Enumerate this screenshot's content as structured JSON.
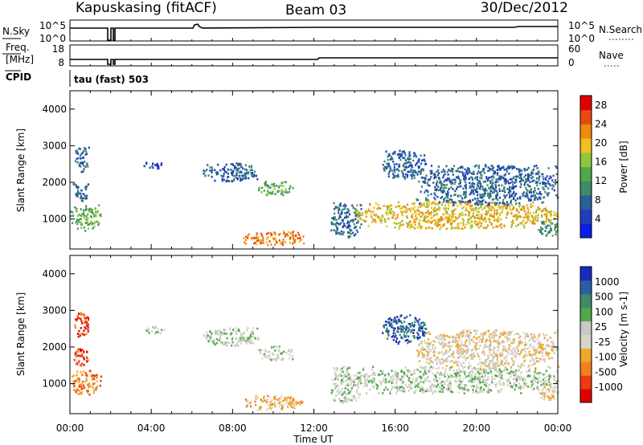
{
  "header": {
    "station": "Kapuskasing (fitACF)",
    "beam": "Beam 03",
    "date": "30/Dec/2012"
  },
  "top_panels": {
    "nsky_label": "N.Sky",
    "nsky_ticks": [
      "10^5",
      "10^0"
    ],
    "nsearch_label": "N.Search",
    "nsearch_ticks": [
      "10^5",
      "10^0"
    ],
    "freq_label_1": "Freq.",
    "freq_label_2": "[MHz]",
    "freq_ticks": [
      "18",
      "8"
    ],
    "nave_label": "Nave",
    "nave_ticks": [
      "60",
      "0"
    ],
    "cpid_label": "CPID",
    "cpid_value": "tau (fast) 503"
  },
  "colors": {
    "power": [
      "#0a1ee6",
      "#1f3fbf",
      "#2a5f9a",
      "#3f8a6a",
      "#4fa84a",
      "#8fc83a",
      "#f0c020",
      "#f08a10",
      "#e84a10",
      "#e00000"
    ],
    "velocity": [
      "#e00000",
      "#f03a10",
      "#f08020",
      "#f0a828",
      "#d8d4c8",
      "#c8c8c4",
      "#4fa84a",
      "#3f8a6a",
      "#2a5fa8",
      "#1a2ac0"
    ]
  },
  "chart_data": [
    {
      "type": "heatmap",
      "title": "Power",
      "ylabel": "Slant Range [km]",
      "xlabel": "Time UT",
      "x_ticks": [
        "00:00",
        "04:00",
        "08:00",
        "12:00",
        "16:00",
        "20:00",
        "00:00"
      ],
      "xlim_hours": [
        0,
        24
      ],
      "y_ticks": [
        "1000",
        "2000",
        "3000",
        "4000"
      ],
      "ylim": [
        180,
        4500
      ],
      "colorbar_label": "Power [dB]",
      "colorbar_ticks": [
        "4",
        "8",
        "12",
        "16",
        "20",
        "24",
        "28"
      ],
      "colorbar_range": [
        0,
        30
      ],
      "regions": [
        {
          "t0": 0.0,
          "t1": 1.5,
          "r0": 700,
          "r1": 1400,
          "level": 4
        },
        {
          "t0": 0.1,
          "t1": 0.9,
          "r0": 1500,
          "r1": 2000,
          "level": 2
        },
        {
          "t0": 0.2,
          "t1": 0.9,
          "r0": 2300,
          "r1": 3000,
          "level": 2
        },
        {
          "t0": 3.6,
          "t1": 4.6,
          "r0": 2380,
          "r1": 2580,
          "level": 1
        },
        {
          "t0": 6.5,
          "t1": 9.3,
          "r0": 2050,
          "r1": 2550,
          "level": 2
        },
        {
          "t0": 9.2,
          "t1": 11.0,
          "r0": 1650,
          "r1": 2050,
          "level": 4
        },
        {
          "t0": 8.5,
          "t1": 11.5,
          "r0": 300,
          "r1": 700,
          "level": 7
        },
        {
          "t0": 12.8,
          "t1": 14.3,
          "r0": 500,
          "r1": 1500,
          "level": 2
        },
        {
          "t0": 14.0,
          "t1": 24.0,
          "r0": 750,
          "r1": 1500,
          "level": 6
        },
        {
          "t0": 15.3,
          "t1": 17.5,
          "r0": 2100,
          "r1": 2900,
          "level": 2
        },
        {
          "t0": 17.0,
          "t1": 24.0,
          "r0": 1400,
          "r1": 2500,
          "level": 2
        },
        {
          "t0": 23.0,
          "t1": 24.0,
          "r0": 550,
          "r1": 1000,
          "level": 3
        }
      ]
    },
    {
      "type": "heatmap",
      "title": "Velocity",
      "ylabel": "Slant Range [km]",
      "xlabel": "Time UT",
      "x_ticks": [
        "00:00",
        "04:00",
        "08:00",
        "12:00",
        "16:00",
        "20:00",
        "00:00"
      ],
      "xlim_hours": [
        0,
        24
      ],
      "y_ticks": [
        "1000",
        "2000",
        "3000",
        "4000"
      ],
      "ylim": [
        180,
        4500
      ],
      "colorbar_label": "Velocity [m s-1]",
      "colorbar_ticks": [
        "1000",
        "500",
        "100",
        "25",
        "-25",
        "-100",
        "-500",
        "-1000"
      ],
      "regions": [
        {
          "t0": 0.0,
          "t1": 1.5,
          "r0": 700,
          "r1": 1400,
          "level": 2
        },
        {
          "t0": 0.1,
          "t1": 0.9,
          "r0": 1500,
          "r1": 2000,
          "level": 1
        },
        {
          "t0": 0.2,
          "t1": 0.9,
          "r0": 2300,
          "r1": 3000,
          "level": 1
        },
        {
          "t0": 3.6,
          "t1": 4.6,
          "r0": 2380,
          "r1": 2580,
          "level": 5
        },
        {
          "t0": 6.5,
          "t1": 9.3,
          "r0": 2050,
          "r1": 2550,
          "level": 5
        },
        {
          "t0": 9.2,
          "t1": 11.0,
          "r0": 1650,
          "r1": 2050,
          "level": 5
        },
        {
          "t0": 8.5,
          "t1": 11.5,
          "r0": 300,
          "r1": 700,
          "level": 3
        },
        {
          "t0": 12.8,
          "t1": 14.3,
          "r0": 500,
          "r1": 1500,
          "level": 5
        },
        {
          "t0": 14.0,
          "t1": 24.0,
          "r0": 750,
          "r1": 1500,
          "level": 5
        },
        {
          "t0": 15.3,
          "t1": 17.5,
          "r0": 2100,
          "r1": 2900,
          "level": 8
        },
        {
          "t0": 17.0,
          "t1": 24.0,
          "r0": 1400,
          "r1": 2500,
          "level": 4
        },
        {
          "t0": 23.0,
          "t1": 24.0,
          "r0": 550,
          "r1": 1000,
          "level": 4
        }
      ]
    }
  ]
}
